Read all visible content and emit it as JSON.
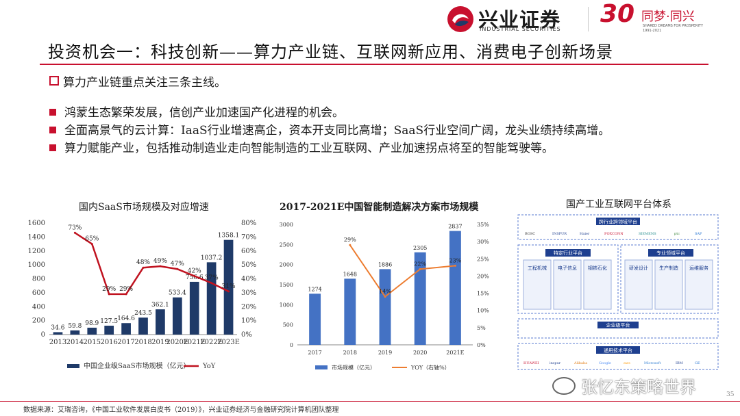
{
  "header": {
    "company_cn": "兴业证券",
    "company_en": "INDUSTRIAL SECURITIES",
    "anniv_num": "30",
    "anniv_cn": "同梦·同兴",
    "anniv_en": "SHARED DREAMS FOR PROSPERITY",
    "anniv_years": "1991-2021",
    "colors": {
      "brand_red": "#c8102e",
      "brand_navy": "#1f3a68"
    }
  },
  "slide": {
    "title": "投资机会一：科技创新——算力产业链、互联网新应用、消费电子创新场景",
    "subtitle": "算力产业链重点关注三条主线。",
    "bullets": [
      "鸿蒙生态繁荣发展，信创产业加速国产化进程的机会。",
      "全面高景气的云计算：IaaS行业增速高企，资本开支同比高增；SaaS行业空间广阔，龙头业绩持续高增。",
      "算力赋能产业，包括推动制造业走向智能制造的工业互联网、产业加速拐点将至的智能驾驶等。"
    ],
    "platform_title": "国产工业互联网平台体系",
    "footer": "数据来源：艾瑞咨询，《中国工业软件发展白皮书（2019）》，兴业证券经济与金融研究院计算机团队整理",
    "page_number": "35",
    "watermark": "张忆东策略世界"
  },
  "platform": {
    "sections": {
      "cross": "跨行业跨领域平台",
      "specific": "特定行业平台",
      "professional": "专业领域平台",
      "enterprise": "企业级平台",
      "general": "通用技术平台"
    },
    "specific_items": [
      "工程机械",
      "电子信息",
      "钢铁石化"
    ],
    "professional_items": [
      "研发设计",
      "生产制造",
      "运维服务"
    ],
    "cross_logos": [
      "BOSC",
      "INSPUR",
      "Haier",
      "FOXCONN",
      "SIEMENS",
      "ptc",
      "SAP"
    ],
    "general_logos": [
      "HUAWEI",
      "inspur",
      "Alibaba",
      "Google",
      "aws",
      "Microsoft",
      "IBM",
      "GE"
    ]
  },
  "chart_data": [
    {
      "type": "bar",
      "title": "国内SaaS市场规模及对应增速",
      "categories": [
        "2013",
        "2014",
        "2015",
        "2016",
        "2017",
        "2018",
        "2019",
        "2020E",
        "2021E",
        "2022E",
        "2023E"
      ],
      "series": [
        {
          "name": "中国企业级SaaS市场规模（亿元）",
          "type": "bar",
          "axis": "left",
          "color": "#1f3a68",
          "values": [
            34.6,
            59.8,
            98.9,
            127.5,
            164.6,
            243.5,
            362.1,
            533.4,
            756.6,
            1037.2,
            1358.1
          ]
        },
        {
          "name": "YoY",
          "type": "line",
          "axis": "right",
          "color": "#c0121f",
          "values": [
            null,
            73,
            65,
            29,
            29,
            48,
            49,
            47,
            42,
            37,
            31
          ]
        }
      ],
      "value_labels": [
        "34.6",
        "59.8",
        "98.9",
        "127.5",
        "164.6",
        "243.5",
        "362.1",
        "533.4",
        "756.6",
        "1037.2",
        "1358.1"
      ],
      "line_labels": [
        "",
        "73%",
        "65%",
        "29%",
        "29%",
        "48%",
        "49%",
        "47%",
        "42%",
        "37%",
        "31%"
      ],
      "ylim": [
        0,
        1600
      ],
      "yticks": [
        "0",
        "200",
        "400",
        "600",
        "800",
        "1000",
        "1200",
        "1400",
        "1600"
      ],
      "y2lim": [
        0,
        80
      ],
      "y2ticks": [
        "0%",
        "10%",
        "20%",
        "30%",
        "40%",
        "50%",
        "60%",
        "70%",
        "80%"
      ],
      "legend": "bottom",
      "grid": false
    },
    {
      "type": "bar",
      "title": "2017-2021E中国智能制造解决方案市场规模",
      "categories": [
        "2017",
        "2018",
        "2019",
        "2020",
        "2021E"
      ],
      "series": [
        {
          "name": "市场规模（亿元）",
          "type": "bar",
          "axis": "left",
          "color": "#4472c4",
          "values": [
            1274,
            1648,
            1886,
            2305,
            2837
          ]
        },
        {
          "name": "YOY（右轴%）",
          "type": "line",
          "axis": "right",
          "color": "#ed7d31",
          "values": [
            null,
            29,
            14,
            22,
            23
          ]
        }
      ],
      "value_labels": [
        "1274",
        "1648",
        "1886",
        "2305",
        "2837"
      ],
      "line_labels": [
        "",
        "29%",
        "14%",
        "22%",
        "23%"
      ],
      "ylim": [
        0,
        3000
      ],
      "yticks": [
        "0",
        "500",
        "1000",
        "1500",
        "2000",
        "2500",
        "3000"
      ],
      "y2lim": [
        0,
        35
      ],
      "y2ticks": [
        "0%",
        "5%",
        "10%",
        "15%",
        "20%",
        "25%",
        "30%",
        "35%"
      ],
      "legend": "bottom",
      "grid": false
    }
  ]
}
